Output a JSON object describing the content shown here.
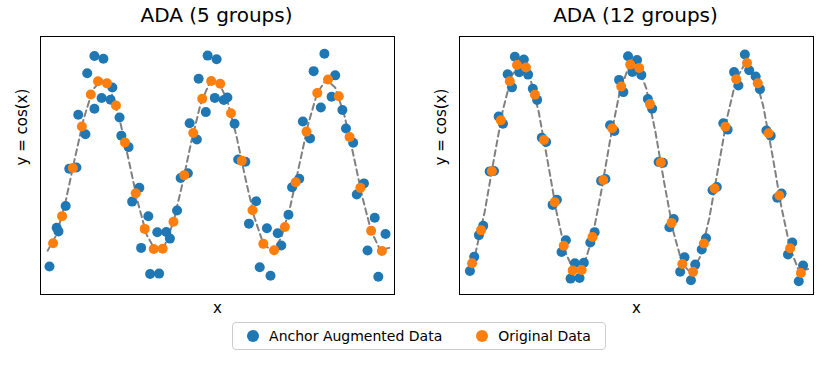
{
  "chart_data": [
    {
      "type": "scatter",
      "title": "ADA (5 groups)",
      "x_label": "x",
      "y_label": "y = cos(x)",
      "xlim": [
        -3.4,
        16.3
      ],
      "ylim": [
        -1.5,
        1.5
      ],
      "tick_labels": false,
      "legend": "bottom",
      "series": [
        {
          "name": "Anchor Augmented Data",
          "color": "#1f77b4",
          "marker": "circle",
          "x": [
            -2.9,
            -2.5,
            -2.4,
            -2.0,
            -1.8,
            -1.4,
            -1.3,
            -0.9,
            -0.8,
            -0.4,
            -0.4,
            0.0,
            0.1,
            0.5,
            0.6,
            1.0,
            1.1,
            1.5,
            1.7,
            2.1,
            2.2,
            2.6,
            2.7,
            3.1,
            3.2,
            3.6,
            3.8,
            4.2,
            4.4,
            4.8,
            4.9,
            5.3,
            5.4,
            5.8,
            5.9,
            6.3,
            6.4,
            6.8,
            7.0,
            7.4,
            7.6,
            8.0,
            8.2,
            8.6,
            8.8,
            9.2,
            9.4,
            9.8,
            10.0,
            10.4,
            10.6,
            11.0,
            11.2,
            11.6,
            11.8,
            12.2,
            12.4,
            12.8,
            13.0,
            13.4,
            13.6,
            14.0,
            14.2,
            14.6,
            14.8,
            15.2,
            15.4,
            15.8
          ],
          "values": [
            -1.175,
            -0.723,
            -0.766,
            -0.471,
            -0.038,
            -0.023,
            0.59,
            0.363,
            1.073,
            0.66,
            1.274,
            0.784,
            1.242,
            0.764,
            0.906,
            0.558,
            0.347,
            0.214,
            -0.42,
            -0.258,
            -0.958,
            -0.59,
            -1.262,
            -0.777,
            -1.257,
            -0.774,
            -0.85,
            -0.523,
            -0.146,
            -0.09,
            0.491,
            0.302,
            1.009,
            0.621,
            1.278,
            0.786,
            1.236,
            0.761,
            0.79,
            0.486,
            0.07,
            0.043,
            -0.676,
            -0.416,
            -1.184,
            -0.729,
            -1.281,
            -0.788,
            -0.93,
            -0.572,
            -0.252,
            -0.155,
            0.512,
            0.315,
            1.097,
            0.675,
            1.299,
            0.799,
            1.048,
            0.645,
            0.43,
            0.265,
            -0.338,
            -0.208,
            -0.988,
            -0.608,
            -1.294,
            -0.796
          ]
        },
        {
          "name": "Original Data",
          "color": "#ff7f0e",
          "marker": "circle",
          "x": [
            -2.7,
            -2.2,
            -1.6,
            -1.1,
            -0.6,
            -0.2,
            0.3,
            0.8,
            1.3,
            1.9,
            2.4,
            2.9,
            3.4,
            4.0,
            4.6,
            5.1,
            5.6,
            6.1,
            6.6,
            7.2,
            7.8,
            8.4,
            9.0,
            9.6,
            10.2,
            10.8,
            11.4,
            12.0,
            12.6,
            13.2,
            13.8,
            14.4,
            15.0,
            15.6
          ],
          "values": [
            -0.904,
            -0.589,
            -0.029,
            0.454,
            0.825,
            0.98,
            0.955,
            0.697,
            0.267,
            -0.323,
            -0.737,
            -0.971,
            -0.967,
            -0.654,
            -0.112,
            0.378,
            0.776,
            0.983,
            0.951,
            0.608,
            0.054,
            -0.52,
            -0.911,
            -0.985,
            -0.715,
            -0.194,
            0.394,
            0.844,
            0.999,
            0.806,
            0.331,
            -0.26,
            -0.76,
            -0.995
          ]
        },
        {
          "type": "line",
          "line_style": "dashed",
          "color": "#808080",
          "x": [
            -3.0,
            -2.5,
            -2.0,
            -1.5,
            -1.0,
            -0.5,
            0.0,
            0.5,
            1.0,
            1.5,
            2.0,
            2.5,
            3.0,
            3.5,
            4.0,
            4.5,
            5.0,
            5.5,
            6.0,
            6.5,
            7.0,
            7.5,
            8.0,
            8.5,
            9.0,
            9.5,
            10.0,
            10.5,
            11.0,
            11.5,
            12.0,
            12.5,
            13.0,
            13.5,
            14.0,
            14.5,
            15.0,
            15.5,
            16.0
          ],
          "values": [
            -0.99,
            -0.801,
            -0.416,
            0.071,
            0.54,
            0.878,
            1,
            0.878,
            0.54,
            0.071,
            -0.416,
            -0.801,
            -0.99,
            -0.936,
            -0.654,
            -0.211,
            0.284,
            0.709,
            0.96,
            0.977,
            0.754,
            0.347,
            -0.146,
            -0.602,
            -0.911,
            -0.997,
            -0.839,
            -0.476,
            0.004,
            0.484,
            0.844,
            0.998,
            0.907,
            0.592,
            0.137,
            -0.358,
            -0.76,
            -0.982,
            -0.958
          ]
        }
      ]
    },
    {
      "type": "scatter",
      "title": "ADA (12 groups)",
      "x_label": "x",
      "y_label": "y = cos(x)",
      "xlim": [
        -3.4,
        16.3
      ],
      "ylim": [
        -1.2,
        1.25
      ],
      "tick_labels": false,
      "legend": "bottom",
      "series": [
        {
          "name": "Anchor Augmented Data",
          "color": "#1f77b4",
          "marker": "circle",
          "x": [
            -2.82,
            -2.58,
            -2.32,
            -2.08,
            -1.72,
            -1.48,
            -1.22,
            -0.98,
            -0.72,
            -0.48,
            -0.32,
            -0.08,
            0.18,
            0.42,
            0.68,
            0.92,
            1.18,
            1.42,
            1.78,
            2.02,
            2.28,
            2.52,
            2.78,
            3.02,
            3.28,
            3.52,
            3.88,
            4.12,
            4.48,
            4.72,
            4.98,
            5.22,
            5.48,
            5.72,
            5.98,
            6.22,
            6.48,
            6.72,
            7.08,
            7.32,
            7.68,
            7.92,
            8.28,
            8.52,
            8.88,
            9.12,
            9.48,
            9.72,
            10.08,
            10.32,
            10.68,
            10.92,
            11.28,
            11.52,
            11.88,
            12.12,
            12.48,
            12.72,
            13.08,
            13.32,
            13.68,
            13.92,
            14.28,
            14.52,
            14.88,
            15.12,
            15.48,
            15.72
          ],
          "values": [
            -0.976,
            -0.841,
            -0.636,
            -0.548,
            -0.031,
            -0.027,
            0.49,
            0.422,
            0.891,
            0.767,
            1.058,
            0.911,
            1.031,
            0.888,
            0.753,
            0.648,
            0.288,
            0.248,
            -0.349,
            -0.3,
            -0.796,
            -0.685,
            -1.049,
            -0.903,
            -1.044,
            -0.899,
            -0.706,
            -0.608,
            -0.121,
            -0.104,
            0.408,
            0.352,
            0.838,
            0.722,
            1.062,
            0.914,
            1.027,
            0.884,
            0.657,
            0.565,
            0.058,
            0.05,
            -0.562,
            -0.484,
            -0.984,
            -0.847,
            -1.064,
            -0.916,
            -0.772,
            -0.665,
            -0.21,
            -0.18,
            0.426,
            0.366,
            0.912,
            0.785,
            1.079,
            0.929,
            0.87,
            0.75,
            0.357,
            0.308,
            -0.281,
            -0.242,
            -0.821,
            -0.707,
            -1.075,
            -0.925
          ]
        },
        {
          "name": "Original Data",
          "color": "#ff7f0e",
          "marker": "circle",
          "x": [
            -2.7,
            -2.2,
            -1.6,
            -1.1,
            -0.6,
            -0.2,
            0.3,
            0.8,
            1.3,
            1.9,
            2.4,
            2.9,
            3.4,
            4.0,
            4.6,
            5.1,
            5.6,
            6.1,
            6.6,
            7.2,
            7.8,
            8.4,
            9.0,
            9.6,
            10.2,
            10.8,
            11.4,
            12.0,
            12.6,
            13.2,
            13.8,
            14.4,
            15.0,
            15.6
          ],
          "values": [
            -0.904,
            -0.589,
            -0.029,
            0.454,
            0.825,
            0.98,
            0.955,
            0.697,
            0.267,
            -0.323,
            -0.737,
            -0.971,
            -0.967,
            -0.654,
            -0.112,
            0.378,
            0.776,
            0.983,
            0.951,
            0.608,
            0.054,
            -0.52,
            -0.911,
            -0.985,
            -0.715,
            -0.194,
            0.394,
            0.844,
            0.999,
            0.806,
            0.331,
            -0.26,
            -0.76,
            -0.995
          ]
        },
        {
          "type": "line",
          "line_style": "dashed",
          "color": "#808080",
          "x": [
            -3.0,
            -2.5,
            -2.0,
            -1.5,
            -1.0,
            -0.5,
            0.0,
            0.5,
            1.0,
            1.5,
            2.0,
            2.5,
            3.0,
            3.5,
            4.0,
            4.5,
            5.0,
            5.5,
            6.0,
            6.5,
            7.0,
            7.5,
            8.0,
            8.5,
            9.0,
            9.5,
            10.0,
            10.5,
            11.0,
            11.5,
            12.0,
            12.5,
            13.0,
            13.5,
            14.0,
            14.5,
            15.0,
            15.5,
            16.0
          ],
          "values": [
            -0.99,
            -0.801,
            -0.416,
            0.071,
            0.54,
            0.878,
            1,
            0.878,
            0.54,
            0.071,
            -0.416,
            -0.801,
            -0.99,
            -0.936,
            -0.654,
            -0.211,
            0.284,
            0.709,
            0.96,
            0.977,
            0.754,
            0.347,
            -0.146,
            -0.602,
            -0.911,
            -0.997,
            -0.839,
            -0.476,
            0.004,
            0.484,
            0.844,
            0.998,
            0.907,
            0.592,
            0.137,
            -0.358,
            -0.76,
            -0.982,
            -0.958
          ]
        }
      ]
    }
  ]
}
